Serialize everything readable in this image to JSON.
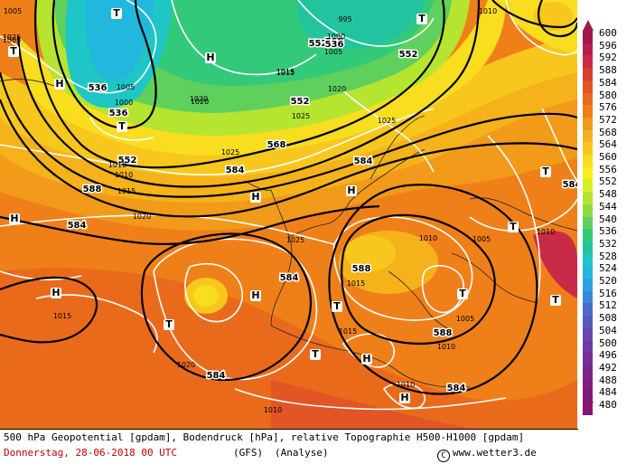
{
  "map": {
    "geopotential_labels": [
      "536",
      "536",
      "552",
      "552",
      "552",
      "568",
      "584",
      "588",
      "584",
      "584",
      "584",
      "584",
      "588",
      "588",
      "568",
      "584",
      "552",
      "536",
      "584"
    ],
    "pressure_labels": [
      "1005",
      "1000",
      "1010",
      "1015",
      "1020",
      "1025",
      "995",
      "1000",
      "1005",
      "1015",
      "1020",
      "1025",
      "1025",
      "1020",
      "1015",
      "1010",
      "1005",
      "1010",
      "1015",
      "1010",
      "1005",
      "1010",
      "1020",
      "1015",
      "1010",
      "1025",
      "1020",
      "1015",
      "1005",
      "1005",
      "1010",
      "1010",
      "1025"
    ],
    "high_marker": "H",
    "low_marker": "T"
  },
  "legend": {
    "values": [
      "600",
      "596",
      "592",
      "588",
      "584",
      "580",
      "576",
      "572",
      "568",
      "564",
      "560",
      "556",
      "552",
      "548",
      "544",
      "540",
      "536",
      "532",
      "528",
      "524",
      "520",
      "516",
      "512",
      "508",
      "504",
      "500",
      "496",
      "492",
      "488",
      "484",
      "480"
    ],
    "colors": [
      "#a0194a",
      "#b81e4e",
      "#c92a45",
      "#d6402f",
      "#e25524",
      "#ea6a1c",
      "#ef8019",
      "#f29a19",
      "#f5b21b",
      "#f7c71d",
      "#f9dd1f",
      "#f8ee1e",
      "#d9ee27",
      "#b5e431",
      "#8edb41",
      "#5fd05c",
      "#33c97a",
      "#22c4a0",
      "#1ec6c6",
      "#22b8dd",
      "#2aa3e2",
      "#3a88d8",
      "#486cc8",
      "#5758bb",
      "#6647ae",
      "#7038a2",
      "#772d96",
      "#7c248b",
      "#7f1d80",
      "#821977",
      "#851670"
    ]
  },
  "footer": {
    "line1": "500 hPa Geopotential [gpdam], Bodendruck [hPa], relative Topographie H500-H1000 [gpdam]",
    "date": "Donnerstag, 28-06-2018  00 UTC",
    "model": "(GFS)",
    "run": "(Analyse)",
    "copyright": "www.wetter3.de",
    "copyright_symbol": "C"
  }
}
